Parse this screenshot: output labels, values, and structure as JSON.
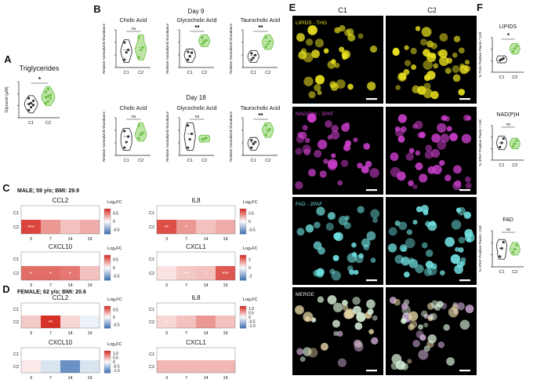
{
  "panel_letters": {
    "a": "A",
    "b": "B",
    "c": "C",
    "d": "D",
    "e": "E",
    "f": "F"
  },
  "colors": {
    "c1": "#333333",
    "c2": "#6abf45",
    "c2_fill": "#bfe6a8",
    "heat_pos": "#d73027",
    "heat_neg": "#4575b4",
    "lipid": "#e8e020",
    "nadh": "#d040d0",
    "fad": "#70e0e0"
  },
  "panel_a": {
    "chart_data": {
      "type": "violin",
      "title": "Triglycerides",
      "ylabel": "Glycerol (μM)",
      "categories": [
        "C1",
        "C2"
      ],
      "points": {
        "C1": [
          66,
          85,
          98,
          104,
          110,
          124,
          140
        ],
        "C2": [
          110,
          121,
          138,
          145,
          152,
          160,
          178,
          196
        ]
      },
      "significance": "*"
    }
  },
  "panel_b": {
    "day9_label": "Day 9",
    "day18_label": "Day 18",
    "ylabel": "Relative Normalized Abundance",
    "chart_data": [
      {
        "type": "violin",
        "title": "Cholic Acid",
        "day": "Day 9",
        "categories": [
          "C1",
          "C2"
        ],
        "points": {
          "C1": [
            0.6,
            0.9,
            1.0,
            1.3
          ],
          "C2": [
            0.7,
            1.0,
            1.1,
            1.5
          ]
        },
        "significance": "ns"
      },
      {
        "type": "violin",
        "title": "Glycocholic Acid",
        "day": "Day 9",
        "categories": [
          "C1",
          "C2"
        ],
        "points": {
          "C1": [
            0.4,
            0.8,
            1.2,
            1.3
          ],
          "C2": [
            2.2,
            2.4,
            2.6,
            2.9
          ]
        },
        "significance": "**"
      },
      {
        "type": "violin",
        "title": "Taurocholic Acid",
        "day": "Day 9",
        "categories": [
          "C1",
          "C2"
        ],
        "points": {
          "C1": [
            0.8,
            1.0,
            1.3,
            1.5
          ],
          "C2": [
            2.2,
            2.5,
            2.8,
            3.2
          ]
        },
        "significance": "**"
      },
      {
        "type": "violin",
        "title": "Cholic Acid",
        "day": "Day 18",
        "categories": [
          "C1",
          "C2"
        ],
        "points": {
          "C1": [
            0.5,
            0.8,
            1.1,
            1.4
          ],
          "C2": [
            1.0,
            1.2,
            1.3,
            1.7
          ]
        },
        "significance": "ns"
      },
      {
        "type": "violin",
        "title": "Glycocholic Acid",
        "day": "Day 18",
        "categories": [
          "C1",
          "C2"
        ],
        "points": {
          "C1": [
            0.6,
            0.9,
            1.1,
            1.4
          ],
          "C2": [
            0.9,
            0.92,
            0.95
          ]
        },
        "significance": "ns"
      },
      {
        "type": "violin",
        "title": "Taurocholic Acid",
        "day": "Day 18",
        "categories": [
          "C1",
          "C2"
        ],
        "points": {
          "C1": [
            0.9,
            1.0,
            1.05,
            1.1
          ],
          "C2": [
            1.25,
            1.35,
            1.4,
            1.5
          ]
        },
        "significance": "**"
      }
    ]
  },
  "panel_c": {
    "title": "MALE; 59 y/o; BMI: 29.9",
    "legend_title": "Log₂FC",
    "chart_data": [
      {
        "type": "heatmap",
        "title": "CCL2",
        "rows": [
          "C1",
          "C2"
        ],
        "columns": [
          "3",
          "7",
          "14",
          "19"
        ],
        "values": [
          [
            0,
            0,
            0,
            0
          ],
          [
            0.9,
            0.5,
            0.3,
            0.4
          ]
        ],
        "stars": [
          [
            "",
            "",
            "",
            ""
          ],
          [
            "***",
            "",
            "",
            ""
          ]
        ],
        "legend_ticks": [
          "0.5",
          "0",
          "-0.5"
        ],
        "vmax": 1
      },
      {
        "type": "heatmap",
        "title": "IL8",
        "rows": [
          "C1",
          "C2"
        ],
        "columns": [
          "3",
          "7",
          "14",
          "19"
        ],
        "values": [
          [
            0,
            0,
            0,
            0
          ],
          [
            0.85,
            0.5,
            0.3,
            0.4
          ]
        ],
        "stars": [
          [
            "",
            "",
            "",
            ""
          ],
          [
            "**",
            "*",
            "",
            ""
          ]
        ],
        "legend_ticks": [
          "0.5",
          "0",
          "-0.5"
        ],
        "vmax": 1
      },
      {
        "type": "heatmap",
        "title": "CXCL10",
        "rows": [
          "C1",
          "C2"
        ],
        "columns": [
          "3",
          "7",
          "14",
          "19"
        ],
        "values": [
          [
            0,
            0,
            0,
            0
          ],
          [
            0.7,
            0.7,
            0.65,
            0.3
          ]
        ],
        "stars": [
          [
            "",
            "",
            "",
            ""
          ],
          [
            "*",
            "*",
            "*",
            ""
          ]
        ],
        "legend_ticks": [
          "0.5",
          "0",
          "-0.5"
        ],
        "vmax": 1
      },
      {
        "type": "heatmap",
        "title": "CXCL1",
        "rows": [
          "C1",
          "C2"
        ],
        "columns": [
          "3",
          "7",
          "14",
          "19"
        ],
        "values": [
          [
            0,
            0,
            0,
            0
          ],
          [
            0.4,
            0.8,
            0.9,
            2.4
          ]
        ],
        "stars": [
          [
            "",
            "",
            "",
            ""
          ],
          [
            "",
            "***",
            "*",
            "***"
          ]
        ],
        "legend_ticks": [
          "2",
          "0",
          "-2"
        ],
        "vmax": 3
      }
    ]
  },
  "panel_d": {
    "title": "FEMALE; 62 y/o; BMI: 20.6",
    "legend_title": "Log₂FC",
    "chart_data": [
      {
        "type": "heatmap",
        "title": "CCL2",
        "rows": [
          "C1",
          "C2"
        ],
        "columns": [
          "3",
          "7",
          "14",
          "19"
        ],
        "values": [
          [
            0,
            0,
            0,
            0
          ],
          [
            0.25,
            1.0,
            0.2,
            -0.1
          ]
        ],
        "stars": [
          [
            "",
            "",
            "",
            ""
          ],
          [
            "",
            "**",
            "",
            ""
          ]
        ],
        "legend_ticks": [
          "0.5",
          "0",
          "-0.5"
        ],
        "vmax": 1
      },
      {
        "type": "heatmap",
        "title": "IL8",
        "rows": [
          "C1",
          "C2"
        ],
        "columns": [
          "3",
          "7",
          "14",
          "19"
        ],
        "values": [
          [
            0,
            0,
            0,
            0
          ],
          [
            0.2,
            0.3,
            0.5,
            0.3
          ]
        ],
        "stars": [
          [
            "",
            "",
            "",
            ""
          ],
          [
            "*",
            "",
            "",
            ""
          ]
        ],
        "legend_ticks": [
          "1.0",
          "0.5",
          "0",
          "-0.5",
          "-1.0"
        ],
        "vmax": 1
      },
      {
        "type": "heatmap",
        "title": "CXCL10",
        "rows": [
          "C1",
          "C2"
        ],
        "columns": [
          "3",
          "7",
          "14",
          "19"
        ],
        "values": [
          [
            0,
            0,
            0,
            0
          ],
          [
            0.1,
            -0.2,
            -0.8,
            -0.2
          ]
        ],
        "stars": [
          [
            "",
            "",
            "",
            ""
          ],
          [
            "",
            "",
            "",
            ""
          ]
        ],
        "legend_ticks": [
          "1.0",
          "0.5",
          "0",
          "-0.5",
          "-1.0"
        ],
        "vmax": 1
      },
      {
        "type": "heatmap",
        "title": "CXCL1",
        "rows": [
          "C1",
          "C2"
        ],
        "columns": [
          "3",
          "7",
          "14",
          "19"
        ],
        "values": [
          [
            0,
            0,
            0,
            0
          ],
          [
            0.35,
            0.35,
            0.35,
            0.35
          ]
        ],
        "stars": [
          [
            "",
            "",
            "",
            ""
          ],
          [
            "",
            "",
            "",
            ""
          ]
        ],
        "legend_ticks": [],
        "vmax": 1
      }
    ]
  },
  "panel_e": {
    "col1": "C1",
    "col2": "C2",
    "rows": [
      {
        "label": "LIPIDS - THG",
        "color": "#e8e020"
      },
      {
        "label": "NAD(P)H - 3PAF",
        "color": "#d040d0"
      },
      {
        "label": "FAD - 2PAF",
        "color": "#70e0e0"
      },
      {
        "label": "MERGE",
        "color": "#e8e8e8"
      }
    ]
  },
  "panel_f": {
    "chart_data": [
      {
        "type": "violin",
        "title": "LIPIDS",
        "ylabel": "% THG Positive Pixels / Cell",
        "categories": [
          "C1",
          "C2"
        ],
        "points": {
          "C1": [
            8.4,
            8.6,
            8.8
          ],
          "C2": [
            10.2,
            10.8,
            11.3
          ]
        },
        "ylim": [
          6,
          13
        ],
        "significance": "*"
      },
      {
        "type": "violin",
        "title": "NAD(P)H",
        "ylabel": "% 3PAF Positive Pixels / Cell",
        "categories": [
          "C1",
          "C2"
        ],
        "points": {
          "C1": [
            9.0,
            10.0,
            11.0
          ],
          "C2": [
            9.2,
            9.8,
            10.5
          ]
        },
        "ylim": [
          6,
          14
        ],
        "significance": "ns"
      },
      {
        "type": "violin",
        "title": "FAD",
        "ylabel": "% 2PAF Positive Pixels / Cell",
        "categories": [
          "C1",
          "C2"
        ],
        "points": {
          "C1": [
            3.0,
            4.6,
            5.8
          ],
          "C2": [
            3.8,
            4.4,
            5.2
          ]
        },
        "ylim": [
          1,
          8
        ],
        "significance": "ns"
      }
    ]
  }
}
